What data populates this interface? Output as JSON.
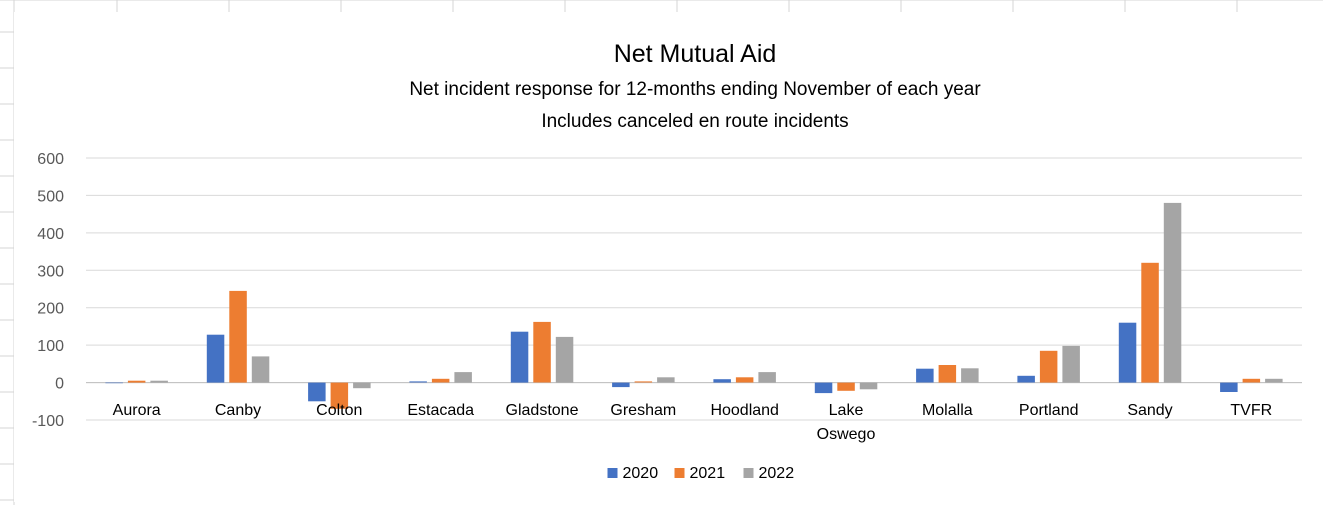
{
  "chart_data": {
    "type": "bar",
    "title": "Net Mutual Aid",
    "subtitle_lines": [
      "Net incident response for 12-months ending November of each year",
      "Includes canceled en route incidents"
    ],
    "categories": [
      [
        "Aurora"
      ],
      [
        "Canby"
      ],
      [
        "Colton"
      ],
      [
        "Estacada"
      ],
      [
        "Gladstone"
      ],
      [
        "Gresham"
      ],
      [
        "Hoodland"
      ],
      [
        "Lake",
        "Oswego"
      ],
      [
        "Molalla"
      ],
      [
        "Portland"
      ],
      [
        "Sandy"
      ],
      [
        "TVFR"
      ]
    ],
    "series": [
      {
        "name": "2020",
        "color": "#4472C4",
        "values": [
          0,
          128,
          -50,
          3,
          136,
          -12,
          9,
          -28,
          37,
          18,
          160,
          -25
        ]
      },
      {
        "name": "2021",
        "color": "#ED7D31",
        "values": [
          5,
          245,
          -70,
          10,
          162,
          3,
          14,
          -22,
          47,
          85,
          320,
          10
        ]
      },
      {
        "name": "2022",
        "color": "#A5A5A5",
        "values": [
          5,
          70,
          -15,
          28,
          122,
          14,
          28,
          -18,
          38,
          98,
          480,
          10
        ]
      }
    ],
    "yticks": [
      "600",
      "500",
      "400",
      "300",
      "200",
      "100",
      "0",
      "-100"
    ],
    "ylim": [
      -100,
      600
    ],
    "grid": true,
    "legend": "bottom"
  }
}
